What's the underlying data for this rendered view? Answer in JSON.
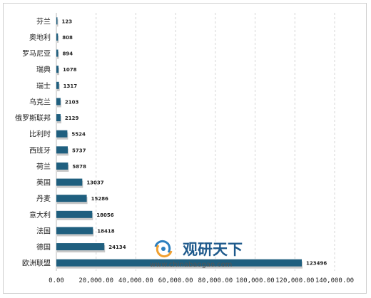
{
  "chart_data": {
    "type": "bar",
    "orientation": "horizontal",
    "title": "",
    "xlabel": "",
    "ylabel": "",
    "xlim": [
      0,
      140000
    ],
    "grid": "vertical-dashed",
    "categories": [
      "芬兰",
      "奥地利",
      "罗马尼亚",
      "瑞典",
      "瑞士",
      "乌克兰",
      "俄罗斯联邦",
      "比利时",
      "西班牙",
      "荷兰",
      "英国",
      "丹麦",
      "意大利",
      "法国",
      "德国",
      "欧洲联盟"
    ],
    "values": [
      123,
      808,
      894,
      1078,
      1317,
      2103,
      2129,
      5524,
      5737,
      5878,
      13037,
      15286,
      18056,
      18418,
      24134,
      123496
    ],
    "value_labels": [
      "123",
      "808",
      "894",
      "1078",
      "1317",
      "2103",
      "2129",
      "5524",
      "5737",
      "5878",
      "13037",
      "15286",
      "18056",
      "18418",
      "24134",
      "123496"
    ],
    "x_ticks": [
      0,
      20000,
      40000,
      60000,
      80000,
      100000,
      120000,
      140000
    ],
    "x_tick_labels": [
      "0.00",
      "20,000.00",
      "40,000.00",
      "60,000.00",
      "80,000.00",
      "100,000.00",
      "120,000.00",
      "140,000.00"
    ],
    "bar_color": "#1f5f7f",
    "shadow_color": "#c8c8c8"
  },
  "watermark": {
    "brand": "观研天下",
    "url": "www.chinabaogao.com",
    "colors": {
      "brand": "#1f5a8c",
      "swirl_orange": "#f0a030",
      "swirl_blue": "#2c7fbf"
    }
  }
}
